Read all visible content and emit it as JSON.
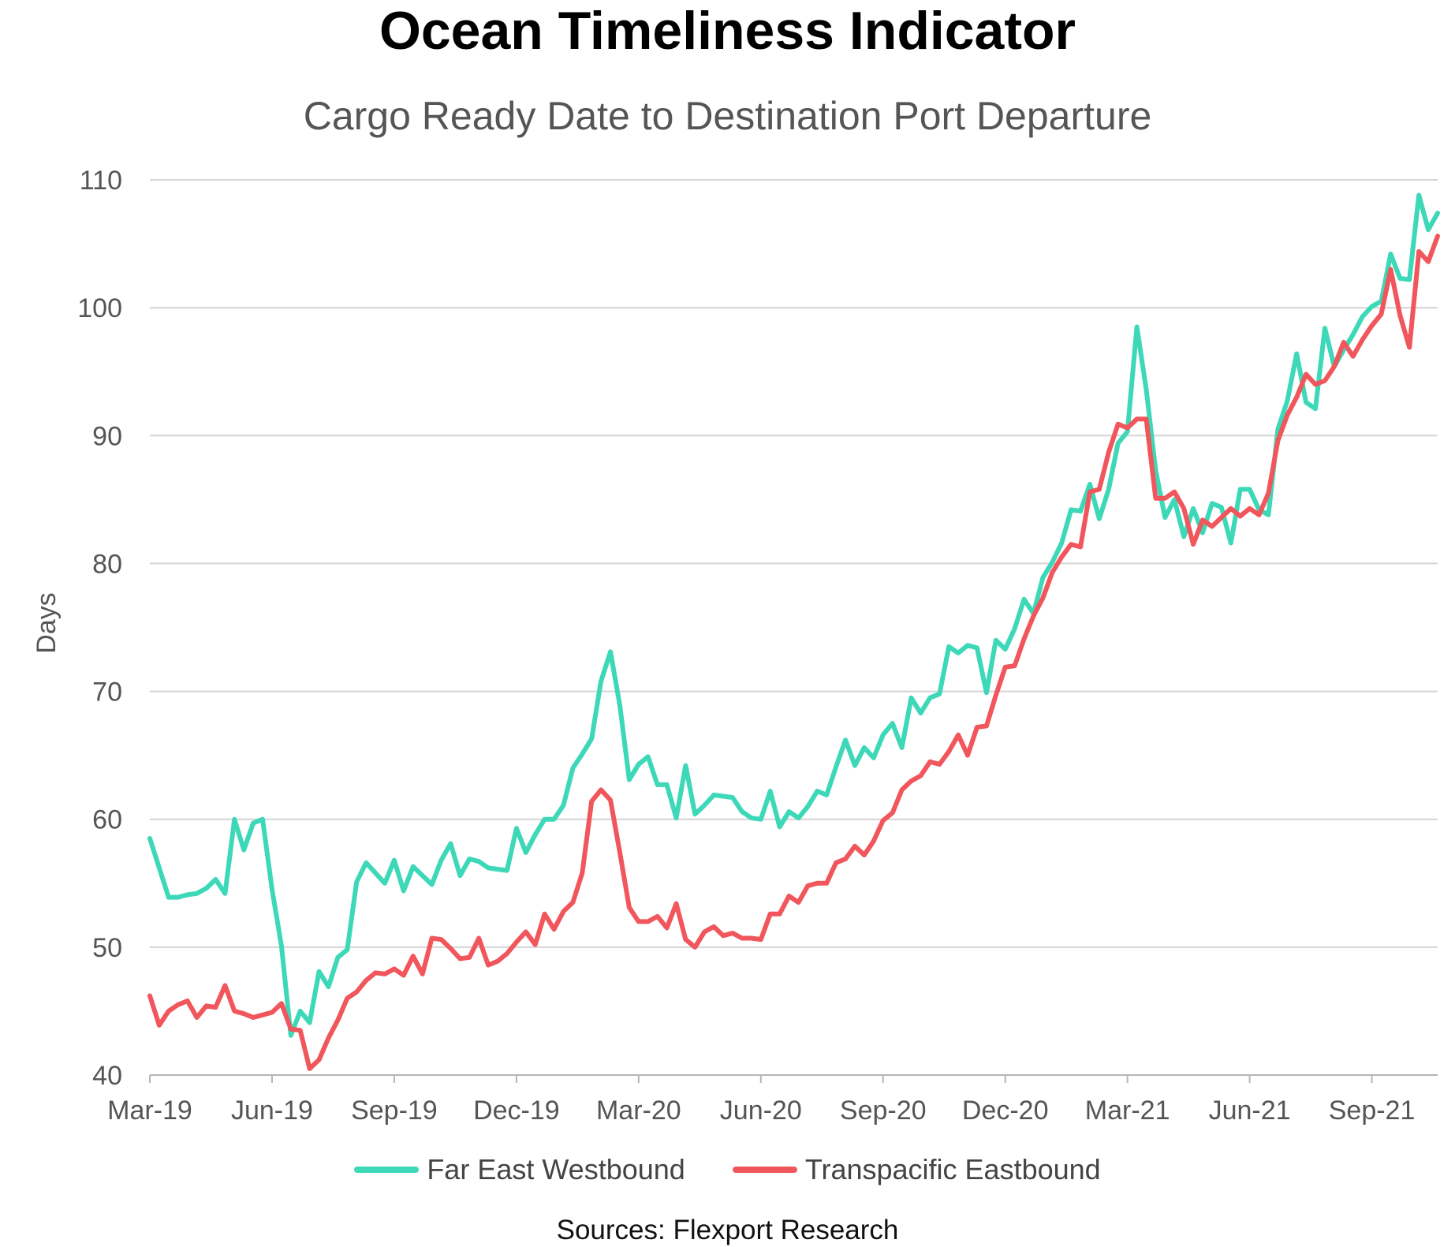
{
  "chart_data": {
    "type": "line",
    "title": "Ocean Timeliness Indicator",
    "subtitle": "Cargo Ready Date to Destination Port Departure",
    "xlabel": "",
    "ylabel": "Days",
    "ylim": [
      40,
      110
    ],
    "yticks": [
      40,
      50,
      60,
      70,
      80,
      90,
      100,
      110
    ],
    "grid": true,
    "legend_position": "bottom",
    "source": "Sources: Flexport Research",
    "x_tick_labels": [
      "Mar-19",
      "Jun-19",
      "Sep-19",
      "Dec-19",
      "Mar-20",
      "Jun-20",
      "Sep-20",
      "Dec-20",
      "Mar-21",
      "Jun-21",
      "Sep-21"
    ],
    "x_tick_weeks": [
      0,
      13,
      26,
      39,
      52,
      65,
      78,
      91,
      104,
      117,
      130
    ],
    "x_week_max": 137,
    "series": [
      {
        "name": "Far East Westbound",
        "color": "#3dd8b7",
        "points": [
          [
            0,
            58.5
          ],
          [
            1,
            56.2
          ],
          [
            2,
            53.9
          ],
          [
            3,
            53.9
          ],
          [
            4,
            54.1
          ],
          [
            5,
            54.2
          ],
          [
            6,
            54.6
          ],
          [
            7,
            55.3
          ],
          [
            8,
            54.2
          ],
          [
            9,
            60.0
          ],
          [
            10,
            57.6
          ],
          [
            11,
            59.7
          ],
          [
            12,
            60.0
          ],
          [
            13,
            54.5
          ],
          [
            14,
            50.1
          ],
          [
            15,
            43.1
          ],
          [
            16,
            45.0
          ],
          [
            17,
            44.1
          ],
          [
            18,
            48.1
          ],
          [
            19,
            46.9
          ],
          [
            20,
            49.2
          ],
          [
            21,
            49.8
          ],
          [
            22,
            55.1
          ],
          [
            23,
            56.6
          ],
          [
            24,
            55.8
          ],
          [
            25,
            55.0
          ],
          [
            26,
            56.8
          ],
          [
            27,
            54.4
          ],
          [
            28,
            56.3
          ],
          [
            29,
            55.6
          ],
          [
            30,
            54.9
          ],
          [
            31,
            56.8
          ],
          [
            32,
            58.1
          ],
          [
            33,
            55.6
          ],
          [
            34,
            56.9
          ],
          [
            35,
            56.7
          ],
          [
            36,
            56.2
          ],
          [
            37,
            56.1
          ],
          [
            38,
            56.0
          ],
          [
            39,
            59.3
          ],
          [
            40,
            57.4
          ],
          [
            41,
            58.8
          ],
          [
            42,
            60.0
          ],
          [
            43,
            60.0
          ],
          [
            44,
            61.1
          ],
          [
            45,
            64.0
          ],
          [
            46,
            65.1
          ],
          [
            47,
            66.3
          ],
          [
            48,
            70.8
          ],
          [
            49,
            73.1
          ],
          [
            50,
            68.9
          ],
          [
            51,
            63.1
          ],
          [
            52,
            64.3
          ],
          [
            53,
            64.9
          ],
          [
            54,
            62.7
          ],
          [
            55,
            62.7
          ],
          [
            56,
            60.1
          ],
          [
            57,
            64.2
          ],
          [
            58,
            60.4
          ],
          [
            59,
            61.1
          ],
          [
            60,
            61.9
          ],
          [
            61,
            61.8
          ],
          [
            62,
            61.7
          ],
          [
            63,
            60.6
          ],
          [
            64,
            60.1
          ],
          [
            65,
            60.0
          ],
          [
            66,
            62.2
          ],
          [
            67,
            59.4
          ],
          [
            68,
            60.6
          ],
          [
            69,
            60.1
          ],
          [
            70,
            61.0
          ],
          [
            71,
            62.2
          ],
          [
            72,
            61.9
          ],
          [
            73,
            64.1
          ],
          [
            74,
            66.2
          ],
          [
            75,
            64.2
          ],
          [
            76,
            65.6
          ],
          [
            77,
            64.8
          ],
          [
            78,
            66.6
          ],
          [
            79,
            67.5
          ],
          [
            80,
            65.6
          ],
          [
            81,
            69.5
          ],
          [
            82,
            68.3
          ],
          [
            83,
            69.5
          ],
          [
            84,
            69.8
          ],
          [
            85,
            73.5
          ],
          [
            86,
            73.0
          ],
          [
            87,
            73.6
          ],
          [
            88,
            73.4
          ],
          [
            89,
            69.9
          ],
          [
            90,
            74.0
          ],
          [
            91,
            73.3
          ],
          [
            92,
            74.9
          ],
          [
            93,
            77.2
          ],
          [
            94,
            76.1
          ],
          [
            95,
            78.9
          ],
          [
            96,
            80.1
          ],
          [
            97,
            81.6
          ],
          [
            98,
            84.2
          ],
          [
            99,
            84.1
          ],
          [
            100,
            86.2
          ],
          [
            101,
            83.5
          ],
          [
            102,
            85.8
          ],
          [
            103,
            89.4
          ],
          [
            104,
            90.3
          ],
          [
            105,
            98.5
          ],
          [
            106,
            93.6
          ],
          [
            107,
            87.3
          ],
          [
            108,
            83.6
          ],
          [
            109,
            85.0
          ],
          [
            110,
            82.1
          ],
          [
            111,
            84.3
          ],
          [
            112,
            82.4
          ],
          [
            113,
            84.7
          ],
          [
            114,
            84.4
          ],
          [
            115,
            81.6
          ],
          [
            116,
            85.8
          ],
          [
            117,
            85.8
          ],
          [
            118,
            84.2
          ],
          [
            119,
            83.8
          ],
          [
            120,
            90.5
          ],
          [
            121,
            92.7
          ],
          [
            122,
            96.4
          ],
          [
            123,
            92.6
          ],
          [
            124,
            92.1
          ],
          [
            125,
            98.4
          ],
          [
            126,
            95.4
          ],
          [
            127,
            96.7
          ],
          [
            128,
            97.9
          ],
          [
            129,
            99.3
          ],
          [
            130,
            100.1
          ],
          [
            131,
            100.5
          ],
          [
            132,
            104.2
          ],
          [
            133,
            102.3
          ],
          [
            134,
            102.2
          ],
          [
            135,
            108.8
          ],
          [
            136,
            106.1
          ],
          [
            137,
            107.4
          ]
        ]
      },
      {
        "name": "Transpacific Eastbound",
        "color": "#f0565b",
        "points": [
          [
            0,
            46.2
          ],
          [
            1,
            43.9
          ],
          [
            2,
            45.0
          ],
          [
            3,
            45.5
          ],
          [
            4,
            45.8
          ],
          [
            5,
            44.5
          ],
          [
            6,
            45.4
          ],
          [
            7,
            45.3
          ],
          [
            8,
            47.0
          ],
          [
            9,
            45.0
          ],
          [
            10,
            44.8
          ],
          [
            11,
            44.5
          ],
          [
            12,
            44.7
          ],
          [
            13,
            44.9
          ],
          [
            14,
            45.6
          ],
          [
            15,
            43.6
          ],
          [
            16,
            43.5
          ],
          [
            17,
            40.5
          ],
          [
            18,
            41.2
          ],
          [
            19,
            42.9
          ],
          [
            20,
            44.3
          ],
          [
            21,
            46.0
          ],
          [
            22,
            46.5
          ],
          [
            23,
            47.4
          ],
          [
            24,
            48.0
          ],
          [
            25,
            47.9
          ],
          [
            26,
            48.3
          ],
          [
            27,
            47.8
          ],
          [
            28,
            49.3
          ],
          [
            29,
            47.9
          ],
          [
            30,
            50.7
          ],
          [
            31,
            50.6
          ],
          [
            32,
            49.9
          ],
          [
            33,
            49.1
          ],
          [
            34,
            49.2
          ],
          [
            35,
            50.7
          ],
          [
            36,
            48.6
          ],
          [
            37,
            48.9
          ],
          [
            38,
            49.5
          ],
          [
            39,
            50.4
          ],
          [
            40,
            51.2
          ],
          [
            41,
            50.2
          ],
          [
            42,
            52.6
          ],
          [
            43,
            51.4
          ],
          [
            44,
            52.8
          ],
          [
            45,
            53.5
          ],
          [
            46,
            55.8
          ],
          [
            47,
            61.4
          ],
          [
            48,
            62.3
          ],
          [
            49,
            61.5
          ],
          [
            50,
            57.4
          ],
          [
            51,
            53.1
          ],
          [
            52,
            52.0
          ],
          [
            53,
            52.0
          ],
          [
            54,
            52.4
          ],
          [
            55,
            51.5
          ],
          [
            56,
            53.4
          ],
          [
            57,
            50.6
          ],
          [
            58,
            50.0
          ],
          [
            59,
            51.2
          ],
          [
            60,
            51.6
          ],
          [
            61,
            50.9
          ],
          [
            62,
            51.1
          ],
          [
            63,
            50.7
          ],
          [
            64,
            50.7
          ],
          [
            65,
            50.6
          ],
          [
            66,
            52.6
          ],
          [
            67,
            52.6
          ],
          [
            68,
            54.0
          ],
          [
            69,
            53.5
          ],
          [
            70,
            54.8
          ],
          [
            71,
            55.0
          ],
          [
            72,
            55.0
          ],
          [
            73,
            56.6
          ],
          [
            74,
            56.9
          ],
          [
            75,
            57.9
          ],
          [
            76,
            57.2
          ],
          [
            77,
            58.3
          ],
          [
            78,
            59.9
          ],
          [
            79,
            60.5
          ],
          [
            80,
            62.3
          ],
          [
            81,
            63.0
          ],
          [
            82,
            63.4
          ],
          [
            83,
            64.5
          ],
          [
            84,
            64.3
          ],
          [
            85,
            65.3
          ],
          [
            86,
            66.6
          ],
          [
            87,
            65.0
          ],
          [
            88,
            67.2
          ],
          [
            89,
            67.3
          ],
          [
            90,
            69.7
          ],
          [
            91,
            71.9
          ],
          [
            92,
            72.0
          ],
          [
            93,
            74.1
          ],
          [
            94,
            75.9
          ],
          [
            95,
            77.3
          ],
          [
            96,
            79.3
          ],
          [
            97,
            80.5
          ],
          [
            98,
            81.5
          ],
          [
            99,
            81.3
          ],
          [
            100,
            85.6
          ],
          [
            101,
            85.8
          ],
          [
            102,
            88.7
          ],
          [
            103,
            90.9
          ],
          [
            104,
            90.6
          ],
          [
            105,
            91.3
          ],
          [
            106,
            91.3
          ],
          [
            107,
            85.1
          ],
          [
            108,
            85.1
          ],
          [
            109,
            85.6
          ],
          [
            110,
            84.3
          ],
          [
            111,
            81.5
          ],
          [
            112,
            83.4
          ],
          [
            113,
            82.9
          ],
          [
            114,
            83.6
          ],
          [
            115,
            84.3
          ],
          [
            116,
            83.7
          ],
          [
            117,
            84.3
          ],
          [
            118,
            83.8
          ],
          [
            119,
            85.5
          ],
          [
            120,
            89.6
          ],
          [
            121,
            91.6
          ],
          [
            122,
            93.0
          ],
          [
            123,
            94.8
          ],
          [
            124,
            94.0
          ],
          [
            125,
            94.3
          ],
          [
            126,
            95.4
          ],
          [
            127,
            97.3
          ],
          [
            128,
            96.2
          ],
          [
            129,
            97.5
          ],
          [
            130,
            98.6
          ],
          [
            131,
            99.5
          ],
          [
            132,
            103.0
          ],
          [
            133,
            99.4
          ],
          [
            134,
            96.9
          ],
          [
            135,
            104.4
          ],
          [
            136,
            103.6
          ],
          [
            137,
            105.6
          ]
        ]
      }
    ]
  }
}
